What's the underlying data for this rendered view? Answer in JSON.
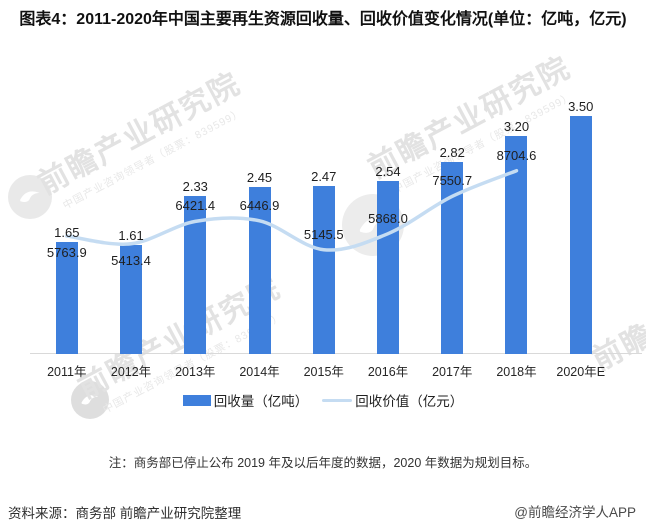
{
  "title": "图表4：2011-2020年中国主要再生资源回收量、回收价值变化情况(单位：亿吨，亿元)",
  "chart_data": {
    "type": "bar+line",
    "categories": [
      "2011年",
      "2012年",
      "2013年",
      "2014年",
      "2015年",
      "2016年",
      "2017年",
      "2018年",
      "2020年E"
    ],
    "series": [
      {
        "name": "回收量（亿吨）",
        "type": "bar",
        "color": "#3E7FDC",
        "values": [
          1.65,
          1.61,
          2.33,
          2.45,
          2.47,
          2.54,
          2.82,
          3.2,
          3.5
        ],
        "labels": [
          "1.65",
          "1.61",
          "2.33",
          "2.45",
          "2.47",
          "2.54",
          "2.82",
          "3.20",
          "3.50"
        ]
      },
      {
        "name": "回收价值（亿元）",
        "type": "line",
        "color": "#C5DCF2",
        "values": [
          5763.9,
          5413.4,
          6421.4,
          6446.9,
          5145.5,
          5868.0,
          7550.7,
          8704.6,
          null
        ],
        "labels": [
          "5763.9",
          "5413.4",
          "6421.4",
          "6446.9",
          "5145.5",
          "5868.0",
          "7550.7",
          "8704.6",
          ""
        ],
        "label_side": [
          "below",
          "below",
          "above",
          "above",
          "above",
          "above",
          "above",
          "above",
          ""
        ]
      }
    ],
    "bar_axis_min": 0,
    "grid": false,
    "legend_position": "bottom"
  },
  "legend": {
    "items": [
      {
        "label": "回收量（亿吨）",
        "type": "bar",
        "color": "#3E7FDC"
      },
      {
        "label": "回收价值（亿元）",
        "type": "line",
        "color": "#C5DCF2"
      }
    ]
  },
  "note": "注：商务部已停止公布 2019 年及以后年度的数据，2020 年数据为规划目标。",
  "footer": {
    "source": "资料来源：商务部 前瞻产业研究院整理",
    "credit": "@前瞻经济学人APP"
  },
  "watermark": {
    "brand": "前瞻产业研究院",
    "tagline": "中国产业咨询领导者（股票：839599）"
  }
}
